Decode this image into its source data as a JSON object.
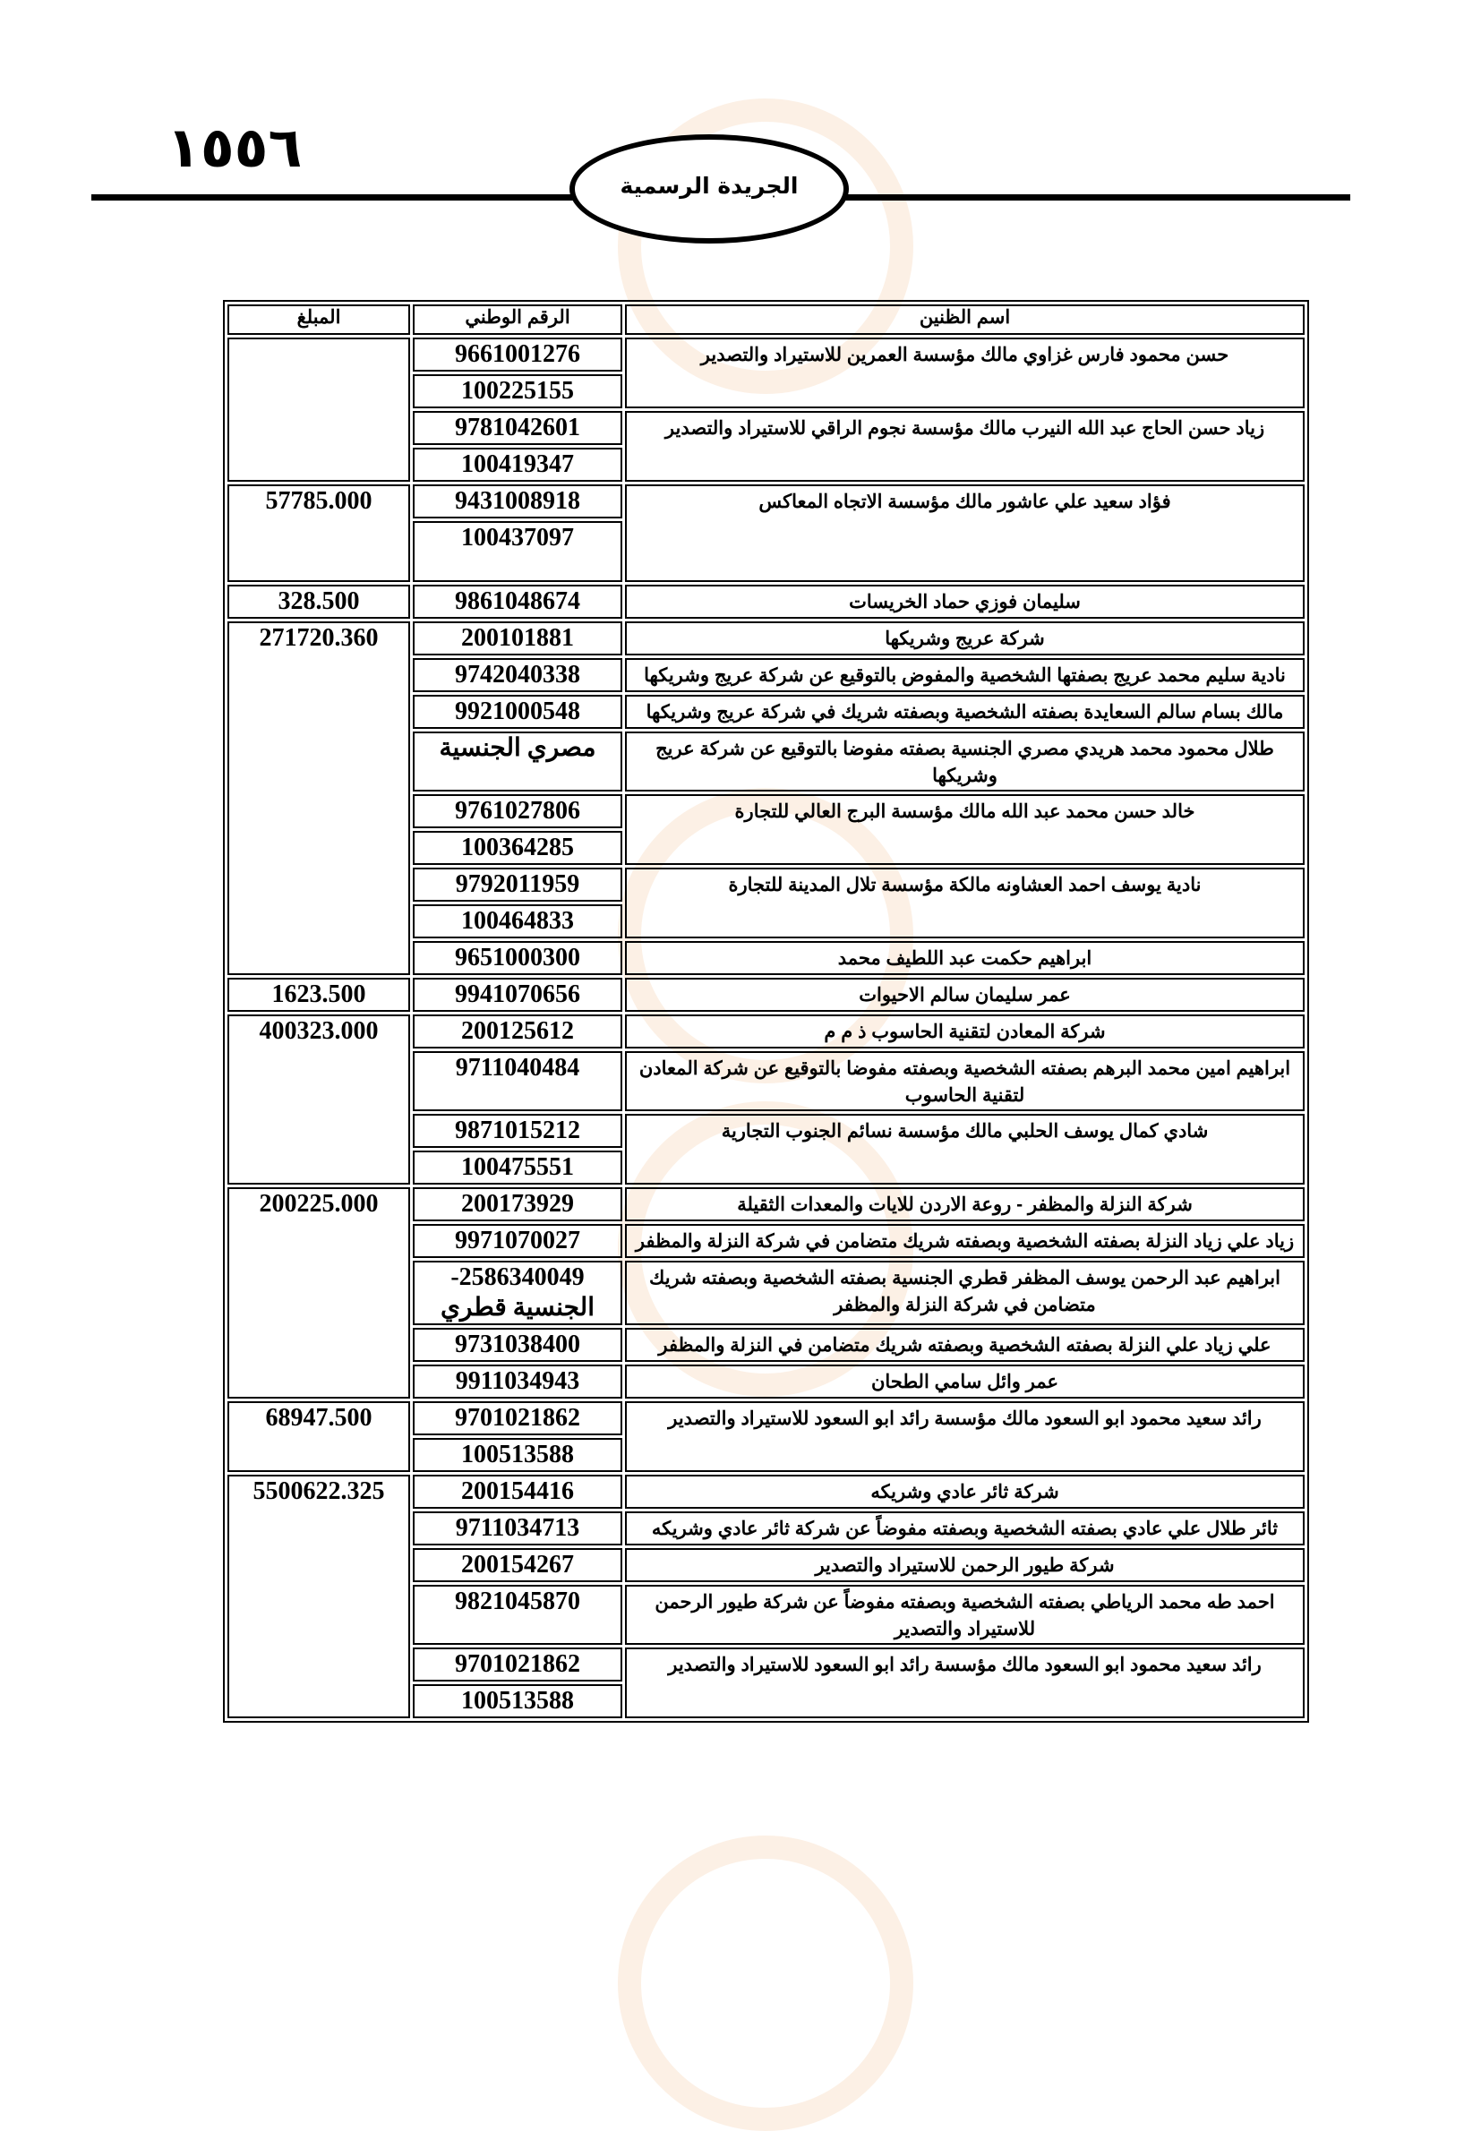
{
  "header": {
    "page_number": "١٥٥٦",
    "publication_title": "الجريدة الرسمية"
  },
  "table": {
    "columns": {
      "name": "اسم الظنين",
      "national_id": "الرقم الوطني",
      "amount": "المبلغ"
    },
    "groups": [
      {
        "amount": "",
        "entries": [
          {
            "name": "حسن محمود فارس غزاوي مالك مؤسسة العمرين للاستيراد والتصدير",
            "ids": [
              "9661001276",
              "100225155"
            ]
          },
          {
            "name": "زياد حسن الحاج عبد الله النيرب مالك مؤسسة نجوم الراقي للاستيراد والتصدير",
            "ids": [
              "9781042601",
              "100419347"
            ]
          }
        ]
      },
      {
        "amount": "57785.000",
        "entries": [
          {
            "name": "فؤاد سعيد علي عاشور مالك مؤسسة الاتجاه المعاكس",
            "ids": [
              "9431008918",
              "100437097"
            ]
          }
        ]
      },
      {
        "amount": "328.500",
        "entries": [
          {
            "name": "سليمان فوزي حماد الخريسات",
            "ids": [
              "9861048674"
            ]
          }
        ]
      },
      {
        "amount": "271720.360",
        "entries": [
          {
            "name": "شركة عريج وشريكها",
            "ids": [
              "200101881"
            ]
          },
          {
            "name": "نادية سليم محمد عريج بصفتها الشخصية والمفوض بالتوقيع عن شركة عريج وشريكها",
            "ids": [
              "9742040338"
            ]
          },
          {
            "name": "مالك بسام سالم السعايدة بصفته الشخصية وبصفته شريك في شركة عريج وشريكها",
            "ids": [
              "9921000548"
            ]
          },
          {
            "name": "طلال محمود محمد هريدي مصري الجنسية بصفته مفوضا بالتوقيع عن شركة عريج وشريكها",
            "ids": [
              "مصري الجنسية"
            ]
          },
          {
            "name": "خالد حسن محمد عبد الله مالك مؤسسة البرج العالي للتجارة",
            "ids": [
              "9761027806",
              "100364285"
            ]
          },
          {
            "name": "نادية يوسف احمد العشاونه مالكة مؤسسة تلال المدينة للتجارة",
            "ids": [
              "9792011959",
              "100464833"
            ]
          },
          {
            "name": "ابراهيم حكمت عبد اللطيف محمد",
            "ids": [
              "9651000300"
            ]
          }
        ]
      },
      {
        "amount": "1623.500",
        "entries": [
          {
            "name": "عمر سليمان سالم الاحيوات",
            "ids": [
              "9941070656"
            ]
          }
        ]
      },
      {
        "amount": "400323.000",
        "entries": [
          {
            "name": "شركة المعادن لتقنية الحاسوب ذ م م",
            "ids": [
              "200125612"
            ]
          },
          {
            "name": "ابراهيم امين محمد البرهم بصفته الشخصية وبصفته مفوضا بالتوقيع عن شركة المعادن لتقنية الحاسوب",
            "ids": [
              "9711040484"
            ]
          },
          {
            "name": "شادي كمال يوسف الحلبي مالك مؤسسة نسائم الجنوب التجارية",
            "ids": [
              "9871015212",
              "100475551"
            ]
          }
        ]
      },
      {
        "amount": "200225.000",
        "entries": [
          {
            "name": "شركة النزلة والمظفر - روعة الاردن للايات والمعدات الثقيلة",
            "ids": [
              "200173929"
            ]
          },
          {
            "name": "زياد علي زياد النزلة بصفته الشخصية وبصفته شريك متضامن في شركة النزلة والمظفر",
            "ids": [
              "9971070027"
            ]
          },
          {
            "name": "ابراهيم عبد الرحمن يوسف المظفر قطري الجنسية بصفته الشخصية وبصفته شريك متضامن في شركة النزلة والمظفر",
            "ids": [
              "2586340049-\nالجنسية قطري"
            ]
          },
          {
            "name": "علي زياد علي النزلة بصفته الشخصية وبصفته شريك متضامن في النزلة والمظفر",
            "ids": [
              "9731038400"
            ]
          },
          {
            "name": "عمر وائل سامي الطحان",
            "ids": [
              "9911034943"
            ]
          }
        ]
      },
      {
        "amount": "68947.500",
        "entries": [
          {
            "name": "رائد سعيد محمود ابو السعود مالك مؤسسة رائد ابو السعود للاستيراد والتصدير",
            "ids": [
              "9701021862",
              "100513588"
            ]
          }
        ]
      },
      {
        "amount": "5500622.325",
        "entries": [
          {
            "name": "شركة ثائر عادي وشريكه",
            "ids": [
              "200154416"
            ]
          },
          {
            "name": "ثائر طلال علي عادي بصفته الشخصية وبصفته مفوضاً عن شركة ثائر عادي وشريكه",
            "ids": [
              "9711034713"
            ]
          },
          {
            "name": "شركة طيور الرحمن للاستيراد والتصدير",
            "ids": [
              "200154267"
            ]
          },
          {
            "name": "احمد طه محمد الرياطي بصفته الشخصية وبصفته مفوضاً عن شركة طيور الرحمن للاستيراد والتصدير",
            "ids": [
              "9821045870"
            ]
          },
          {
            "name": "رائد سعيد محمود ابو السعود مالك مؤسسة رائد ابو السعود للاستيراد والتصدير",
            "ids": [
              "9701021862",
              "100513588"
            ]
          }
        ]
      }
    ]
  }
}
